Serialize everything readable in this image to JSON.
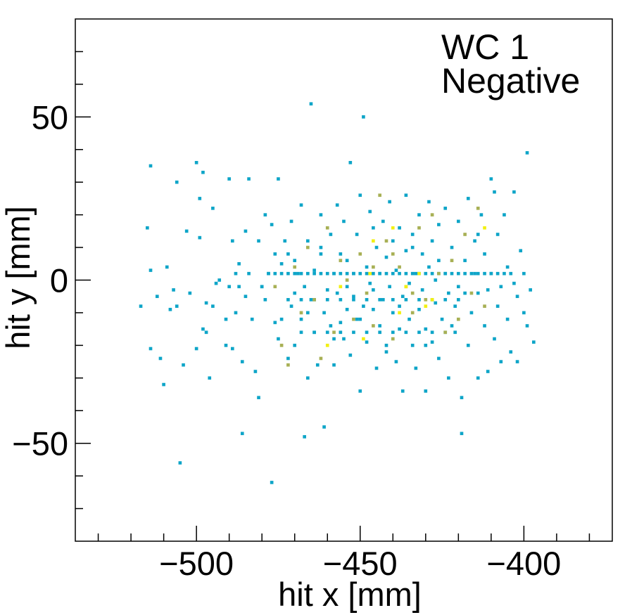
{
  "chart_data": {
    "type": "heatmap",
    "title": "",
    "annotations": [
      "WC 1",
      "Negative"
    ],
    "xlabel": "hit x [mm]",
    "ylabel": "hit y [mm]",
    "xlim": [
      -537,
      -373
    ],
    "ylim": [
      -80,
      80
    ],
    "xticks": [
      -500,
      -450,
      -400
    ],
    "xtick_labels": [
      "−500",
      "−450",
      "−400"
    ],
    "yticks": [
      -50,
      0,
      50
    ],
    "ytick_labels": [
      "−50",
      "0",
      "50"
    ],
    "grid": false,
    "legend": "none",
    "colors": {
      "low": "#0ea5c8",
      "mid": "#a8b055",
      "high": "#f2f012",
      "axis": "#000000"
    },
    "note_levels": "count level 1 = low, 2 = mid, 3 = high",
    "cells": [
      [
        -517,
        -8,
        1
      ],
      [
        -515,
        16,
        1
      ],
      [
        -514,
        35,
        1
      ],
      [
        -514,
        3,
        1
      ],
      [
        -514,
        -21,
        1
      ],
      [
        -512,
        -5,
        1
      ],
      [
        -511,
        -24,
        1
      ],
      [
        -510,
        -32,
        1
      ],
      [
        -509,
        4,
        1
      ],
      [
        -508,
        -9,
        1
      ],
      [
        -507,
        -3,
        1
      ],
      [
        -506,
        30,
        1
      ],
      [
        -506,
        -8,
        1
      ],
      [
        -505,
        -56,
        1
      ],
      [
        -504,
        -26,
        1
      ],
      [
        -503,
        15,
        1
      ],
      [
        -502,
        -4,
        1
      ],
      [
        -500,
        36,
        1
      ],
      [
        -500,
        -21,
        1
      ],
      [
        -499,
        13,
        1
      ],
      [
        -499,
        25,
        1
      ],
      [
        -498,
        33,
        1
      ],
      [
        -498,
        -15,
        1
      ],
      [
        -497,
        -7,
        1
      ],
      [
        -497,
        -16,
        1
      ],
      [
        -496,
        -30,
        1
      ],
      [
        -495,
        -8,
        1
      ],
      [
        -495,
        22,
        1
      ],
      [
        -494,
        -1,
        1
      ],
      [
        -493,
        0,
        1
      ],
      [
        -491,
        -20,
        1
      ],
      [
        -491,
        -12,
        1
      ],
      [
        -490,
        -2,
        1
      ],
      [
        -490,
        31,
        1
      ],
      [
        -489,
        12,
        1
      ],
      [
        -489,
        -21,
        1
      ],
      [
        -488,
        -10,
        1
      ],
      [
        -488,
        2,
        1
      ],
      [
        -487,
        5,
        1
      ],
      [
        -487,
        -2,
        1
      ],
      [
        -486,
        -25,
        1
      ],
      [
        -486,
        -47,
        1
      ],
      [
        -485,
        15,
        1
      ],
      [
        -485,
        -5,
        1
      ],
      [
        -484,
        2,
        1
      ],
      [
        -484,
        31,
        1
      ],
      [
        -483,
        -12,
        1
      ],
      [
        -482,
        -28,
        1
      ],
      [
        -481,
        -36,
        1
      ],
      [
        -481,
        12,
        1
      ],
      [
        -480,
        -2,
        1
      ],
      [
        -479,
        20,
        1
      ],
      [
        -479,
        -6,
        1
      ],
      [
        -478,
        2,
        1
      ],
      [
        -477,
        -62,
        1
      ],
      [
        -477,
        17,
        1
      ],
      [
        -476,
        -13,
        1
      ],
      [
        -476,
        8,
        1
      ],
      [
        -475,
        31,
        1
      ],
      [
        -475,
        -18,
        1
      ],
      [
        -474,
        -12,
        1
      ],
      [
        -474,
        5,
        1
      ],
      [
        -473,
        12,
        1
      ],
      [
        -472,
        -24,
        1
      ],
      [
        -472,
        8,
        1
      ],
      [
        -471,
        -8,
        1
      ],
      [
        -471,
        18,
        1
      ],
      [
        -470,
        -20,
        1
      ],
      [
        -470,
        -4,
        1
      ],
      [
        -469,
        2,
        1
      ],
      [
        -468,
        23,
        1
      ],
      [
        -468,
        -12,
        1
      ],
      [
        -467,
        -2,
        1
      ],
      [
        -467,
        -48,
        1
      ],
      [
        -466,
        -30,
        1
      ],
      [
        -466,
        12,
        1
      ],
      [
        -465,
        -6,
        1
      ],
      [
        -465,
        54,
        1
      ],
      [
        -464,
        -16,
        1
      ],
      [
        -464,
        3,
        1
      ],
      [
        -463,
        -26,
        1
      ],
      [
        -462,
        8,
        1
      ],
      [
        -462,
        20,
        1
      ],
      [
        -461,
        -45,
        1
      ],
      [
        -461,
        -10,
        1
      ],
      [
        -460,
        -3,
        1
      ],
      [
        -459,
        14,
        1
      ],
      [
        -459,
        -14,
        1
      ],
      [
        -458,
        -26,
        1
      ],
      [
        -458,
        2,
        1
      ],
      [
        -457,
        -4,
        1
      ],
      [
        -457,
        23,
        1
      ],
      [
        -456,
        -13,
        1
      ],
      [
        -456,
        8,
        1
      ],
      [
        -455,
        -18,
        1
      ],
      [
        -455,
        18,
        1
      ],
      [
        -454,
        -2,
        1
      ],
      [
        -454,
        -9,
        1
      ],
      [
        -453,
        -23,
        1
      ],
      [
        -453,
        36,
        1
      ],
      [
        -452,
        2,
        1
      ],
      [
        -452,
        -5,
        1
      ],
      [
        -451,
        -12,
        1
      ],
      [
        -451,
        14,
        1
      ],
      [
        -450,
        -34,
        1
      ],
      [
        -450,
        26,
        1
      ],
      [
        -449,
        50,
        1
      ],
      [
        -449,
        -8,
        1
      ],
      [
        -448,
        4,
        1
      ],
      [
        -448,
        -19,
        1
      ],
      [
        -447,
        -1,
        1
      ],
      [
        -447,
        21,
        1
      ],
      [
        -446,
        -9,
        1
      ],
      [
        -446,
        -3,
        1
      ],
      [
        -445,
        10,
        1
      ],
      [
        -445,
        -27,
        1
      ],
      [
        -444,
        2,
        1
      ],
      [
        -444,
        -14,
        1
      ],
      [
        -443,
        18,
        1
      ],
      [
        -443,
        -6,
        1
      ],
      [
        -442,
        -20,
        1
      ],
      [
        -442,
        7,
        1
      ],
      [
        -441,
        -2,
        1
      ],
      [
        -441,
        24,
        1
      ],
      [
        -440,
        -10,
        1
      ],
      [
        -440,
        12,
        1
      ],
      [
        -439,
        -25,
        1
      ],
      [
        -439,
        3,
        1
      ],
      [
        -438,
        -15,
        1
      ],
      [
        -438,
        16,
        1
      ],
      [
        -437,
        -34,
        1
      ],
      [
        -437,
        -5,
        1
      ],
      [
        -436,
        9,
        1
      ],
      [
        -436,
        26,
        1
      ],
      [
        -435,
        -12,
        1
      ],
      [
        -435,
        -1,
        1
      ],
      [
        -434,
        -20,
        1
      ],
      [
        -434,
        14,
        1
      ],
      [
        -433,
        2,
        1
      ],
      [
        -433,
        -27,
        1
      ],
      [
        -432,
        -9,
        1
      ],
      [
        -432,
        20,
        1
      ],
      [
        -431,
        -3,
        1
      ],
      [
        -431,
        8,
        1
      ],
      [
        -430,
        -15,
        1
      ],
      [
        -430,
        -34,
        1
      ],
      [
        -429,
        4,
        1
      ],
      [
        -429,
        24,
        1
      ],
      [
        -428,
        -19,
        1
      ],
      [
        -428,
        12,
        1
      ],
      [
        -427,
        -7,
        1
      ],
      [
        -427,
        0,
        1
      ],
      [
        -426,
        17,
        1
      ],
      [
        -426,
        -24,
        1
      ],
      [
        -425,
        -12,
        1
      ],
      [
        -424,
        2,
        1
      ],
      [
        -424,
        22,
        1
      ],
      [
        -423,
        -4,
        1
      ],
      [
        -423,
        -30,
        1
      ],
      [
        -422,
        10,
        1
      ],
      [
        -421,
        -16,
        1
      ],
      [
        -421,
        -8,
        1
      ],
      [
        -420,
        18,
        1
      ],
      [
        -420,
        -2,
        1
      ],
      [
        -419,
        -36,
        1
      ],
      [
        -419,
        -47,
        1
      ],
      [
        -418,
        6,
        1
      ],
      [
        -417,
        -20,
        1
      ],
      [
        -417,
        25,
        1
      ],
      [
        -416,
        -10,
        1
      ],
      [
        -415,
        2,
        1
      ],
      [
        -415,
        12,
        1
      ],
      [
        -414,
        -30,
        1
      ],
      [
        -414,
        -4,
        1
      ],
      [
        -413,
        20,
        1
      ],
      [
        -412,
        -14,
        1
      ],
      [
        -412,
        8,
        1
      ],
      [
        -411,
        -28,
        1
      ],
      [
        -411,
        -3,
        1
      ],
      [
        -410,
        31,
        1
      ],
      [
        -410,
        2,
        1
      ],
      [
        -409,
        -18,
        1
      ],
      [
        -409,
        27,
        1
      ],
      [
        -408,
        -8,
        1
      ],
      [
        -408,
        14,
        1
      ],
      [
        -407,
        -25,
        1
      ],
      [
        -407,
        -2,
        1
      ],
      [
        -406,
        20,
        1
      ],
      [
        -405,
        -12,
        1
      ],
      [
        -405,
        4,
        1
      ],
      [
        -404,
        -22,
        1
      ],
      [
        -403,
        -1,
        1
      ],
      [
        -403,
        27,
        1
      ],
      [
        -402,
        -5,
        1
      ],
      [
        -402,
        -25,
        1
      ],
      [
        -401,
        9,
        1
      ],
      [
        -400,
        -10,
        1
      ],
      [
        -400,
        2,
        1
      ],
      [
        -399,
        -14,
        1
      ],
      [
        -399,
        39,
        1
      ],
      [
        -398,
        -3,
        1
      ],
      [
        -397,
        -19,
        1
      ],
      [
        -480,
        -2,
        1
      ],
      [
        -478,
        2,
        1
      ],
      [
        -476,
        2,
        1
      ],
      [
        -474,
        2,
        1
      ],
      [
        -472,
        2,
        1
      ],
      [
        -470,
        2,
        1
      ],
      [
        -468,
        2,
        1
      ],
      [
        -466,
        2,
        1
      ],
      [
        -464,
        2,
        1
      ],
      [
        -462,
        2,
        1
      ],
      [
        -460,
        2,
        1
      ],
      [
        -458,
        2,
        1
      ],
      [
        -456,
        2,
        1
      ],
      [
        -454,
        2,
        1
      ],
      [
        -452,
        2,
        1
      ],
      [
        -450,
        2,
        1
      ],
      [
        -448,
        2,
        1
      ],
      [
        -446,
        2,
        1
      ],
      [
        -444,
        2,
        1
      ],
      [
        -442,
        2,
        1
      ],
      [
        -440,
        2,
        1
      ],
      [
        -438,
        2,
        1
      ],
      [
        -436,
        2,
        1
      ],
      [
        -434,
        2,
        1
      ],
      [
        -432,
        2,
        1
      ],
      [
        -430,
        2,
        1
      ],
      [
        -428,
        2,
        1
      ],
      [
        -426,
        2,
        1
      ],
      [
        -424,
        2,
        1
      ],
      [
        -422,
        2,
        1
      ],
      [
        -420,
        2,
        1
      ],
      [
        -418,
        2,
        1
      ],
      [
        -416,
        2,
        1
      ],
      [
        -414,
        2,
        1
      ],
      [
        -412,
        2,
        1
      ],
      [
        -410,
        2,
        1
      ],
      [
        -408,
        2,
        1
      ],
      [
        -406,
        2,
        1
      ],
      [
        -404,
        2,
        1
      ],
      [
        -472,
        -6,
        1
      ],
      [
        -468,
        -6,
        1
      ],
      [
        -464,
        -6,
        1
      ],
      [
        -460,
        -6,
        1
      ],
      [
        -456,
        -6,
        1
      ],
      [
        -452,
        -6,
        1
      ],
      [
        -448,
        -6,
        1
      ],
      [
        -444,
        -6,
        1
      ],
      [
        -440,
        -6,
        1
      ],
      [
        -436,
        -6,
        1
      ],
      [
        -432,
        -6,
        1
      ],
      [
        -428,
        -6,
        1
      ],
      [
        -424,
        -6,
        1
      ],
      [
        -420,
        -6,
        1
      ],
      [
        -468,
        -16,
        1
      ],
      [
        -464,
        -16,
        1
      ],
      [
        -460,
        -16,
        1
      ],
      [
        -456,
        -16,
        1
      ],
      [
        -452,
        -16,
        1
      ],
      [
        -448,
        -16,
        1
      ],
      [
        -444,
        -16,
        1
      ],
      [
        -440,
        -16,
        1
      ],
      [
        -436,
        -16,
        1
      ],
      [
        -432,
        -16,
        1
      ],
      [
        -428,
        -16,
        1
      ],
      [
        -424,
        -16,
        1
      ],
      [
        -470,
        6,
        1
      ],
      [
        -466,
        -10,
        1
      ],
      [
        -462,
        10,
        1
      ],
      [
        -458,
        -18,
        1
      ],
      [
        -454,
        6,
        1
      ],
      [
        -450,
        -12,
        1
      ],
      [
        -446,
        16,
        1
      ],
      [
        -442,
        -22,
        1
      ],
      [
        -438,
        -8,
        1
      ],
      [
        -434,
        10,
        1
      ],
      [
        -430,
        -20,
        1
      ],
      [
        -426,
        6,
        1
      ],
      [
        -422,
        -14,
        1
      ],
      [
        -418,
        -4,
        1
      ],
      [
        -414,
        14,
        1
      ],
      [
        -476,
        -2,
        2
      ],
      [
        -472,
        -26,
        2
      ],
      [
        -470,
        4,
        2
      ],
      [
        -466,
        10,
        2
      ],
      [
        -464,
        -6,
        2
      ],
      [
        -460,
        16,
        2
      ],
      [
        -458,
        -16,
        2
      ],
      [
        -456,
        6,
        2
      ],
      [
        -454,
        0,
        2
      ],
      [
        -452,
        -12,
        2
      ],
      [
        -450,
        8,
        2
      ],
      [
        -448,
        -4,
        2
      ],
      [
        -446,
        -14,
        2
      ],
      [
        -444,
        26,
        2
      ],
      [
        -442,
        12,
        2
      ],
      [
        -440,
        -18,
        2
      ],
      [
        -438,
        4,
        2
      ],
      [
        -436,
        -2,
        2
      ],
      [
        -434,
        -10,
        2
      ],
      [
        -432,
        16,
        2
      ],
      [
        -430,
        -6,
        2
      ],
      [
        -428,
        20,
        2
      ],
      [
        -426,
        2,
        2
      ],
      [
        -424,
        -16,
        2
      ],
      [
        -422,
        6,
        2
      ],
      [
        -420,
        -12,
        2
      ],
      [
        -418,
        14,
        2
      ],
      [
        -416,
        -4,
        2
      ],
      [
        -414,
        22,
        2
      ],
      [
        -412,
        -8,
        2
      ],
      [
        -474,
        -20,
        2
      ],
      [
        -468,
        -10,
        2
      ],
      [
        -462,
        -24,
        2
      ],
      [
        -446,
        4,
        2
      ],
      [
        -440,
        8,
        2
      ],
      [
        -434,
        -4,
        2
      ],
      [
        -456,
        -2,
        3
      ],
      [
        -449,
        -18,
        3
      ],
      [
        -447,
        2,
        3
      ],
      [
        -446,
        12,
        3
      ],
      [
        -438,
        -10,
        3
      ],
      [
        -436,
        -2,
        3
      ],
      [
        -432,
        2,
        3
      ],
      [
        -428,
        -6,
        3
      ],
      [
        -412,
        16,
        3
      ],
      [
        -460,
        -20,
        3
      ],
      [
        -440,
        16,
        3
      ],
      [
        -430,
        -8,
        3
      ]
    ]
  }
}
